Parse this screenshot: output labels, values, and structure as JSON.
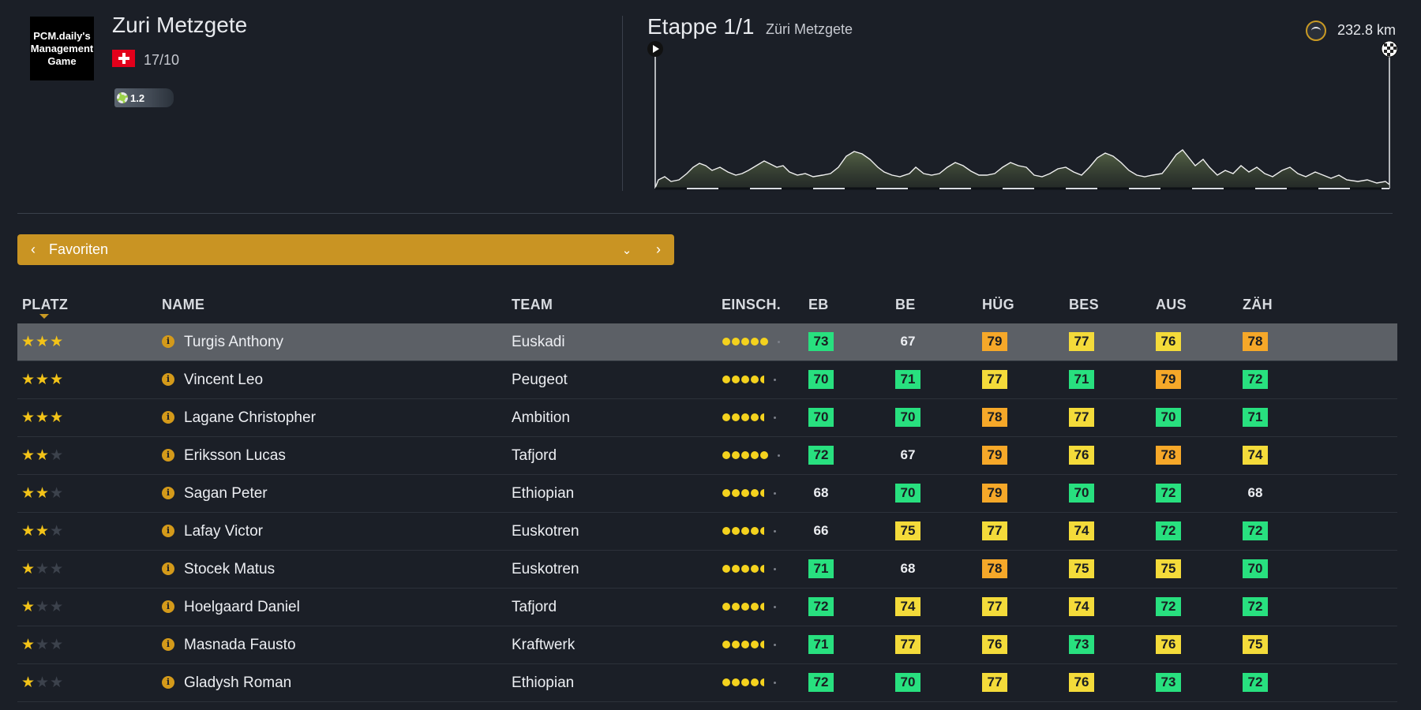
{
  "header": {
    "logo_text": "PCM.daily's Management Game",
    "race_name": "Zuri Metzgete",
    "race_date": "17/10",
    "race_category": "1.2",
    "flag": "swiss-flag"
  },
  "stage": {
    "title": "Etappe 1/1",
    "subtitle": "Züri Metzgete",
    "distance": "232.8 km"
  },
  "filter": {
    "label": "Favoriten",
    "accent_color": "#c99423"
  },
  "table": {
    "columns": [
      "PLATZ",
      "NAME",
      "TEAM",
      "EINSCH.",
      "EB",
      "BE",
      "HÜG",
      "BES",
      "AUS",
      "ZÄH"
    ],
    "colors": {
      "g": "#28e07f",
      "y": "#f4db3a",
      "o": "#f6a829",
      "n": "none"
    },
    "rows": [
      {
        "stars": 3,
        "name": "Turgis Anthony",
        "team": "Euskadi",
        "form_dots": 5,
        "stats": [
          {
            "v": "73",
            "c": "g"
          },
          {
            "v": "67",
            "c": "n"
          },
          {
            "v": "79",
            "c": "o"
          },
          {
            "v": "77",
            "c": "y"
          },
          {
            "v": "76",
            "c": "y"
          },
          {
            "v": "78",
            "c": "o"
          }
        ]
      },
      {
        "stars": 3,
        "name": "Vincent Leo",
        "team": "Peugeot",
        "form_dots": 4.5,
        "stats": [
          {
            "v": "70",
            "c": "g"
          },
          {
            "v": "71",
            "c": "g"
          },
          {
            "v": "77",
            "c": "y"
          },
          {
            "v": "71",
            "c": "g"
          },
          {
            "v": "79",
            "c": "o"
          },
          {
            "v": "72",
            "c": "g"
          }
        ]
      },
      {
        "stars": 3,
        "name": "Lagane Christopher",
        "team": "Ambition",
        "form_dots": 4.5,
        "stats": [
          {
            "v": "70",
            "c": "g"
          },
          {
            "v": "70",
            "c": "g"
          },
          {
            "v": "78",
            "c": "o"
          },
          {
            "v": "77",
            "c": "y"
          },
          {
            "v": "70",
            "c": "g"
          },
          {
            "v": "71",
            "c": "g"
          }
        ]
      },
      {
        "stars": 2,
        "name": "Eriksson Lucas",
        "team": "Tafjord",
        "form_dots": 5,
        "stats": [
          {
            "v": "72",
            "c": "g"
          },
          {
            "v": "67",
            "c": "n"
          },
          {
            "v": "79",
            "c": "o"
          },
          {
            "v": "76",
            "c": "y"
          },
          {
            "v": "78",
            "c": "o"
          },
          {
            "v": "74",
            "c": "y"
          }
        ]
      },
      {
        "stars": 2,
        "name": "Sagan Peter",
        "team": "Ethiopian",
        "form_dots": 4.5,
        "stats": [
          {
            "v": "68",
            "c": "n"
          },
          {
            "v": "70",
            "c": "g"
          },
          {
            "v": "79",
            "c": "o"
          },
          {
            "v": "70",
            "c": "g"
          },
          {
            "v": "72",
            "c": "g"
          },
          {
            "v": "68",
            "c": "n"
          }
        ]
      },
      {
        "stars": 2,
        "name": "Lafay Victor",
        "team": "Euskotren",
        "form_dots": 4.5,
        "stats": [
          {
            "v": "66",
            "c": "n"
          },
          {
            "v": "75",
            "c": "y"
          },
          {
            "v": "77",
            "c": "y"
          },
          {
            "v": "74",
            "c": "y"
          },
          {
            "v": "72",
            "c": "g"
          },
          {
            "v": "72",
            "c": "g"
          }
        ]
      },
      {
        "stars": 1,
        "name": "Stocek Matus",
        "team": "Euskotren",
        "form_dots": 4.5,
        "stats": [
          {
            "v": "71",
            "c": "g"
          },
          {
            "v": "68",
            "c": "n"
          },
          {
            "v": "78",
            "c": "o"
          },
          {
            "v": "75",
            "c": "y"
          },
          {
            "v": "75",
            "c": "y"
          },
          {
            "v": "70",
            "c": "g"
          }
        ]
      },
      {
        "stars": 1,
        "name": "Hoelgaard Daniel",
        "team": "Tafjord",
        "form_dots": 4.5,
        "stats": [
          {
            "v": "72",
            "c": "g"
          },
          {
            "v": "74",
            "c": "y"
          },
          {
            "v": "77",
            "c": "y"
          },
          {
            "v": "74",
            "c": "y"
          },
          {
            "v": "72",
            "c": "g"
          },
          {
            "v": "72",
            "c": "g"
          }
        ]
      },
      {
        "stars": 1,
        "name": "Masnada Fausto",
        "team": "Kraftwerk",
        "form_dots": 4.5,
        "stats": [
          {
            "v": "71",
            "c": "g"
          },
          {
            "v": "77",
            "c": "y"
          },
          {
            "v": "76",
            "c": "y"
          },
          {
            "v": "73",
            "c": "g"
          },
          {
            "v": "76",
            "c": "y"
          },
          {
            "v": "75",
            "c": "y"
          }
        ]
      },
      {
        "stars": 1,
        "name": "Gladysh Roman",
        "team": "Ethiopian",
        "form_dots": 4.5,
        "stats": [
          {
            "v": "72",
            "c": "g"
          },
          {
            "v": "70",
            "c": "g"
          },
          {
            "v": "77",
            "c": "y"
          },
          {
            "v": "76",
            "c": "y"
          },
          {
            "v": "73",
            "c": "g"
          },
          {
            "v": "72",
            "c": "g"
          }
        ]
      }
    ]
  }
}
